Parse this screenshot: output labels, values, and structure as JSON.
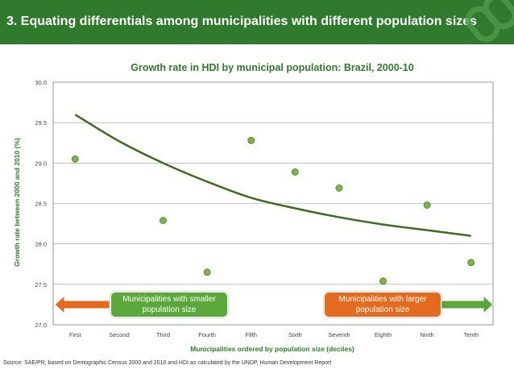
{
  "header": {
    "title": "3. Equating differentials among municipalities with different population sizes",
    "logo_icon": "chain-link-icon"
  },
  "chart_data": {
    "type": "scatter",
    "title": "Growth rate in HDI by municipal population: Brazil, 2000-10",
    "xlabel": "Municipalities ordered by population size (deciles)",
    "ylabel": "Growth rate between 2000 and 2010 (%)",
    "categories": [
      "First",
      "Second",
      "Third",
      "Fourth",
      "Fifth",
      "Sixth",
      "Seventh",
      "Eighth",
      "Ninth",
      "Tenth"
    ],
    "series": [
      {
        "values": [
          29.05,
          null,
          28.29,
          27.65,
          29.28,
          28.89,
          28.69,
          27.54,
          28.48,
          27.77
        ],
        "color": "#7ab648"
      }
    ],
    "trendline": {
      "type": "logarithmic",
      "values": [
        29.6,
        29.27,
        29.0,
        28.77,
        28.57,
        28.44,
        28.33,
        28.24,
        28.17,
        28.1
      ],
      "color": "#3f6b22"
    },
    "ylim": [
      27.0,
      30.0
    ],
    "yticks": [
      "27.0",
      "27.5",
      "28.0",
      "28.5",
      "29.0",
      "29.5",
      "30.0"
    ],
    "grid": true,
    "source": "Source: SAE/PR, based on Demographic Census 2000 and 2010 and HDI as calculated by the UNDP, Human Development Report"
  },
  "callouts": {
    "left": "Municipalities with smaller population size",
    "right": "Municipalities with larger population size",
    "left_color": "#5aa83a",
    "right_color": "#e36a1f",
    "left_arrow_icon": "arrow-left-icon",
    "right_arrow_icon": "arrow-right-icon"
  }
}
